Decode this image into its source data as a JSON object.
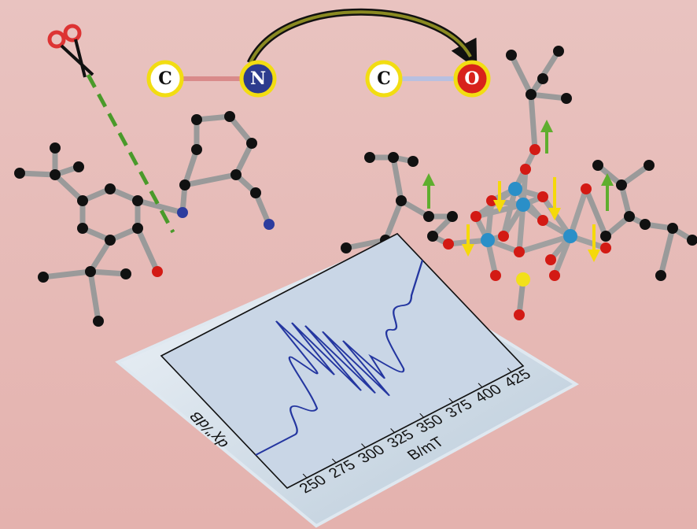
{
  "substitution": {
    "from": [
      "C",
      "N"
    ],
    "to": [
      "C",
      "O"
    ]
  },
  "spectrum": {
    "x_label": "B/mT",
    "y_label": "dχ''/dB",
    "xticks": [
      250,
      275,
      300,
      325,
      350,
      375,
      400,
      425
    ]
  }
}
